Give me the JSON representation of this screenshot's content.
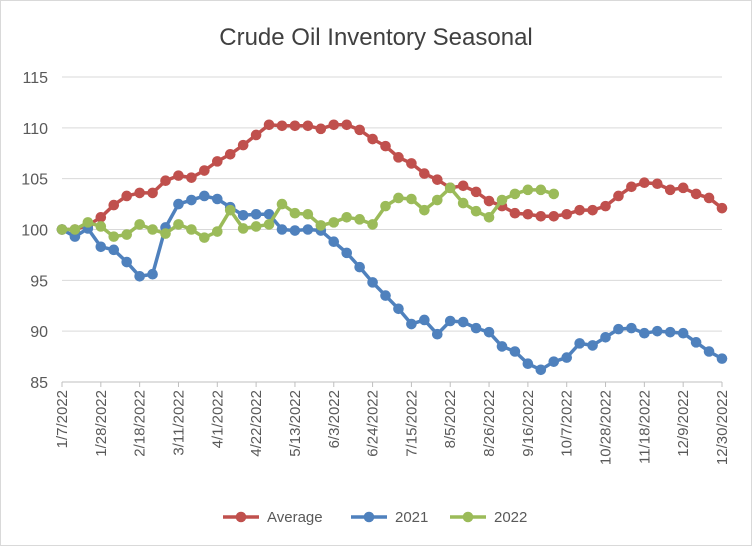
{
  "chart_data": {
    "type": "line",
    "title": "Crude Oil Inventory Seasonal",
    "xlabel": "",
    "ylabel": "",
    "ylim": [
      85,
      115
    ],
    "yticks": [
      85,
      90,
      95,
      100,
      105,
      110,
      115
    ],
    "grid": true,
    "legend": "bottom",
    "x_tick_labels": [
      "1/7/2022",
      "1/28/2022",
      "2/18/2022",
      "3/11/2022",
      "4/1/2022",
      "4/22/2022",
      "5/13/2022",
      "6/3/2022",
      "6/24/2022",
      "7/15/2022",
      "8/5/2022",
      "8/26/2022",
      "9/16/2022",
      "10/7/2022",
      "10/28/2022",
      "11/18/2022",
      "12/9/2022",
      "12/30/2022"
    ],
    "weeks": 52,
    "series": [
      {
        "name": "Average",
        "color": "#C0504D",
        "values": [
          100.0,
          100.0,
          100.4,
          101.2,
          102.4,
          103.3,
          103.6,
          103.6,
          104.8,
          105.3,
          105.1,
          105.8,
          106.7,
          107.4,
          108.3,
          109.3,
          110.3,
          110.2,
          110.2,
          110.2,
          109.9,
          110.3,
          110.3,
          109.8,
          108.9,
          108.2,
          107.1,
          106.5,
          105.5,
          104.9,
          104.1,
          104.3,
          103.7,
          102.8,
          102.3,
          101.6,
          101.5,
          101.3,
          101.3,
          101.5,
          101.9,
          101.9,
          102.3,
          103.3,
          104.2,
          104.6,
          104.5,
          103.9,
          104.1,
          103.5,
          103.1,
          102.1
        ]
      },
      {
        "name": "2021",
        "color": "#4F81BD",
        "values": [
          100.0,
          99.3,
          100.1,
          98.3,
          98.0,
          96.8,
          95.4,
          95.6,
          100.2,
          102.5,
          102.9,
          103.3,
          103.0,
          102.2,
          101.4,
          101.5,
          101.5,
          100.0,
          99.9,
          100.0,
          99.9,
          98.8,
          97.7,
          96.3,
          94.8,
          93.5,
          92.2,
          90.7,
          91.1,
          89.7,
          91.0,
          90.9,
          90.3,
          89.9,
          88.5,
          88.0,
          86.8,
          86.2,
          87.0,
          87.4,
          88.8,
          88.6,
          89.4,
          90.2,
          90.3,
          89.8,
          90.0,
          89.9,
          89.8,
          88.9,
          88.0,
          87.3
        ]
      },
      {
        "name": "2022",
        "color": "#9BBB59",
        "values": [
          100.0,
          100.0,
          100.7,
          100.3,
          99.3,
          99.5,
          100.5,
          100.0,
          99.6,
          100.5,
          100.0,
          99.2,
          99.8,
          101.9,
          100.1,
          100.3,
          100.5,
          102.5,
          101.6,
          101.5,
          100.4,
          100.7,
          101.2,
          101.0,
          100.5,
          102.3,
          103.1,
          103.0,
          101.9,
          102.9,
          104.1,
          102.6,
          101.8,
          101.2,
          102.9,
          103.5,
          103.9,
          103.9,
          103.5
        ]
      }
    ]
  }
}
